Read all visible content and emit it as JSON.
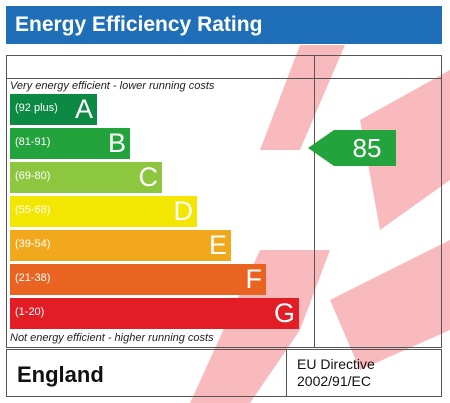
{
  "header": {
    "title": "Energy Efficiency Rating"
  },
  "captions": {
    "top": "Very energy efficient - lower running costs",
    "bottom": "Not energy efficient - higher running costs"
  },
  "bands": [
    {
      "range": "(92 plus)",
      "letter": "A",
      "color": "#0c8a43"
    },
    {
      "range": "(81-91)",
      "letter": "B",
      "color": "#23a33c"
    },
    {
      "range": "(69-80)",
      "letter": "C",
      "color": "#8dc63f"
    },
    {
      "range": "(55-68)",
      "letter": "D",
      "color": "#f3e600"
    },
    {
      "range": "(39-54)",
      "letter": "E",
      "color": "#f2a81d"
    },
    {
      "range": "(21-38)",
      "letter": "F",
      "color": "#ea6421"
    },
    {
      "range": "(1-20)",
      "letter": "G",
      "color": "#e21d25"
    }
  ],
  "current_rating": {
    "value": "85",
    "band": "B",
    "color": "#23a33c"
  },
  "footer": {
    "country": "England",
    "directive_line1": "EU Directive",
    "directive_line2": "2002/91/EC"
  },
  "watermark_color": "#f6a3a7"
}
